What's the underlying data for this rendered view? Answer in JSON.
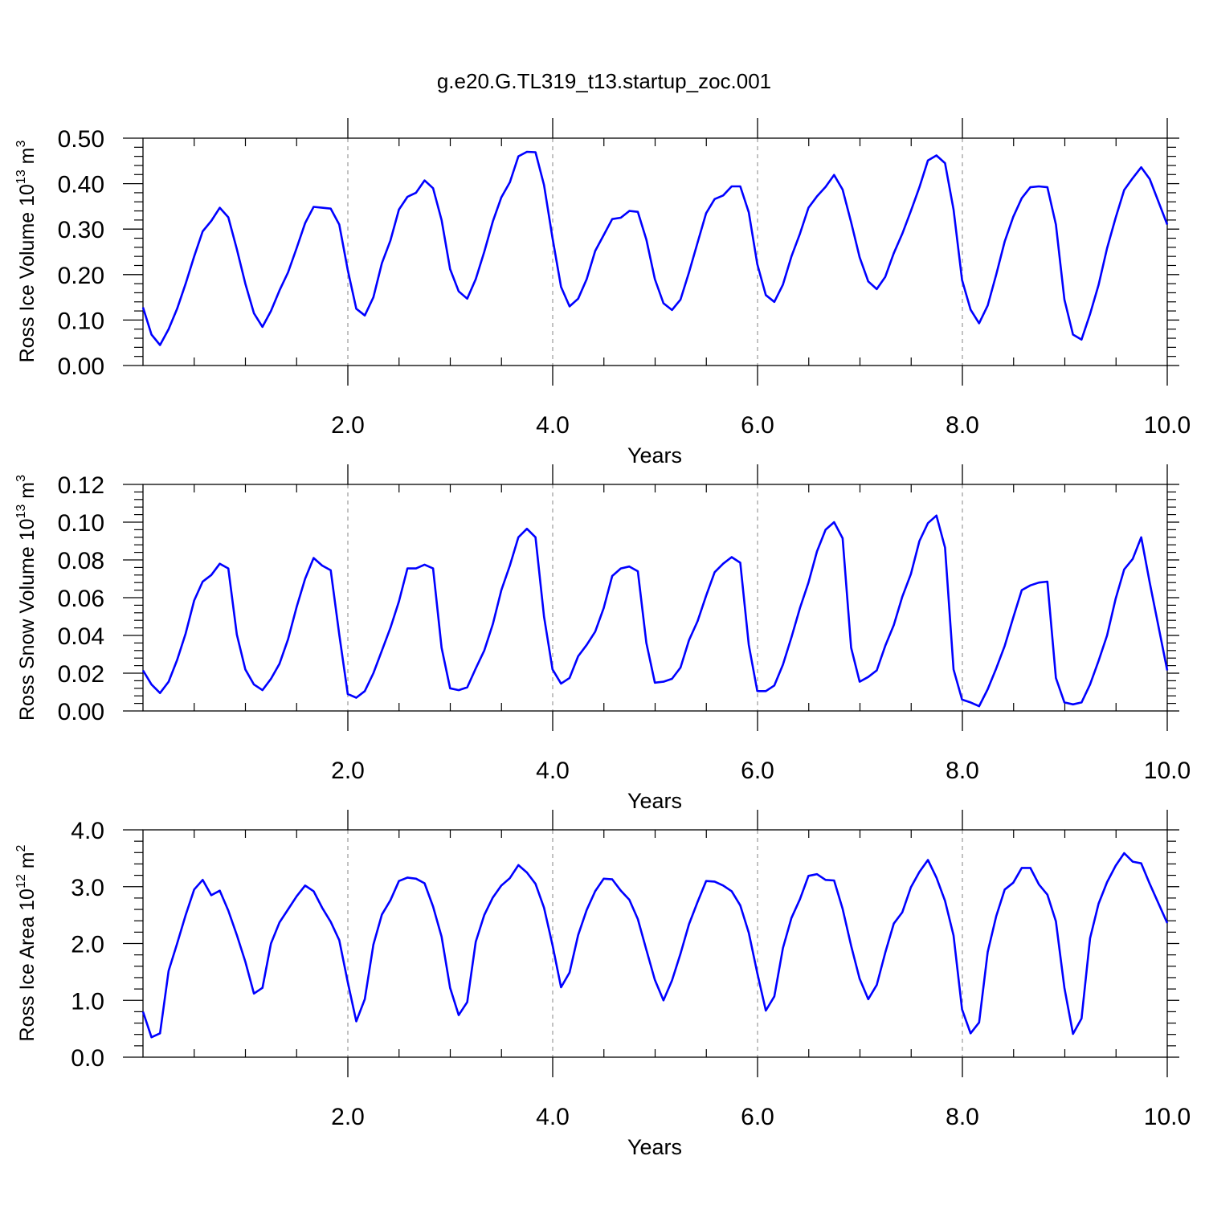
{
  "figure": {
    "title": "g.e20.G.TL319_t13.startup_zoc.001"
  },
  "chart_data": [
    {
      "type": "line",
      "xlabel": "Years",
      "ylabel": {
        "prefix": "Ross Ice Volume 10",
        "exp": "13",
        "unit": " m",
        "unit_exp": "3"
      },
      "xlim": [
        0.0,
        10.0
      ],
      "ylim": [
        0.0,
        0.5
      ],
      "x_ticks": [
        2,
        4,
        6,
        8,
        10
      ],
      "x_tick_labels": [
        "2.0",
        "4.0",
        "6.0",
        "8.0",
        "10.0"
      ],
      "y_ticks": [
        0,
        0.1,
        0.2,
        0.3,
        0.4,
        0.5
      ],
      "y_tick_labels": [
        "0.00",
        "0.10",
        "0.20",
        "0.30",
        "0.40",
        "0.50"
      ],
      "grid": "vertical dashed at major x ticks",
      "color": "#0000ff",
      "x_start": 0.0,
      "x_step": 0.0833,
      "values": [
        0.128,
        0.068,
        0.045,
        0.08,
        0.125,
        0.18,
        0.24,
        0.295,
        0.318,
        0.347,
        0.326,
        0.256,
        0.18,
        0.115,
        0.085,
        0.12,
        0.165,
        0.205,
        0.258,
        0.313,
        0.349,
        0.347,
        0.345,
        0.31,
        0.21,
        0.125,
        0.11,
        0.15,
        0.225,
        0.275,
        0.343,
        0.371,
        0.38,
        0.407,
        0.39,
        0.32,
        0.212,
        0.163,
        0.147,
        0.19,
        0.25,
        0.317,
        0.37,
        0.403,
        0.46,
        0.47,
        0.469,
        0.397,
        0.28,
        0.173,
        0.13,
        0.147,
        0.19,
        0.252,
        0.287,
        0.322,
        0.325,
        0.34,
        0.338,
        0.277,
        0.19,
        0.137,
        0.122,
        0.145,
        0.205,
        0.27,
        0.335,
        0.366,
        0.374,
        0.394,
        0.394,
        0.337,
        0.223,
        0.155,
        0.14,
        0.178,
        0.24,
        0.29,
        0.347,
        0.372,
        0.393,
        0.419,
        0.387,
        0.315,
        0.238,
        0.185,
        0.168,
        0.195,
        0.247,
        0.29,
        0.34,
        0.392,
        0.451,
        0.462,
        0.445,
        0.343,
        0.188,
        0.123,
        0.093,
        0.132,
        0.2,
        0.273,
        0.327,
        0.368,
        0.392,
        0.394,
        0.392,
        0.31,
        0.145,
        0.068,
        0.057,
        0.113,
        0.177,
        0.258,
        0.325,
        0.386,
        0.412,
        0.436,
        0.41,
        0.31
      ]
    },
    {
      "type": "line",
      "xlabel": "Years",
      "ylabel": {
        "prefix": "Ross Snow Volume 10",
        "exp": "13",
        "unit": " m",
        "unit_exp": "3"
      },
      "xlim": [
        0.0,
        10.0
      ],
      "ylim": [
        0.0,
        0.12
      ],
      "x_ticks": [
        2,
        4,
        6,
        8,
        10
      ],
      "x_tick_labels": [
        "2.0",
        "4.0",
        "6.0",
        "8.0",
        "10.0"
      ],
      "y_ticks": [
        0,
        0.02,
        0.04,
        0.06,
        0.08,
        0.1,
        0.12
      ],
      "y_tick_labels": [
        "0.00",
        "0.02",
        "0.04",
        "0.06",
        "0.08",
        "0.10",
        "0.12"
      ],
      "grid": "vertical dashed at major x ticks",
      "color": "#0000ff",
      "x_start": 0.0,
      "x_step": 0.0833,
      "values": [
        0.0215,
        0.014,
        0.0095,
        0.0155,
        0.027,
        0.041,
        0.0585,
        0.0685,
        0.072,
        0.078,
        0.0755,
        0.0405,
        0.022,
        0.014,
        0.011,
        0.017,
        0.025,
        0.038,
        0.055,
        0.07,
        0.081,
        0.077,
        0.0745,
        0.0405,
        0.009,
        0.007,
        0.0105,
        0.02,
        0.032,
        0.044,
        0.058,
        0.0755,
        0.0755,
        0.0775,
        0.0755,
        0.0335,
        0.012,
        0.011,
        0.0125,
        0.0225,
        0.032,
        0.046,
        0.064,
        0.077,
        0.092,
        0.0965,
        0.092,
        0.05,
        0.022,
        0.0145,
        0.0175,
        0.029,
        0.035,
        0.042,
        0.0545,
        0.0715,
        0.0755,
        0.0765,
        0.074,
        0.036,
        0.015,
        0.0155,
        0.017,
        0.023,
        0.0375,
        0.0475,
        0.061,
        0.0735,
        0.078,
        0.0815,
        0.0785,
        0.035,
        0.0105,
        0.0105,
        0.0135,
        0.0245,
        0.039,
        0.0545,
        0.068,
        0.0845,
        0.096,
        0.1,
        0.0915,
        0.0335,
        0.0155,
        0.018,
        0.0215,
        0.0345,
        0.0455,
        0.0605,
        0.0725,
        0.09,
        0.0995,
        0.1035,
        0.0865,
        0.022,
        0.006,
        0.0045,
        0.0025,
        0.0115,
        0.0225,
        0.0345,
        0.0495,
        0.064,
        0.0665,
        0.068,
        0.0685,
        0.0175,
        0.0045,
        0.0035,
        0.0045,
        0.014,
        0.0265,
        0.04,
        0.0595,
        0.075,
        0.0805,
        0.092,
        0.068,
        0.0215
      ]
    },
    {
      "type": "line",
      "xlabel": "Years",
      "ylabel": {
        "prefix": "Ross Ice Area 10",
        "exp": "12",
        "unit": " m",
        "unit_exp": "2"
      },
      "xlim": [
        0.0,
        10.0
      ],
      "ylim": [
        0.0,
        4.0
      ],
      "x_ticks": [
        2,
        4,
        6,
        8,
        10
      ],
      "x_tick_labels": [
        "2.0",
        "4.0",
        "6.0",
        "8.0",
        "10.0"
      ],
      "y_ticks": [
        0,
        1,
        2,
        3,
        4
      ],
      "y_tick_labels": [
        "0.0",
        "1.0",
        "2.0",
        "3.0",
        "4.0"
      ],
      "grid": "vertical dashed at major x ticks",
      "color": "#0000ff",
      "x_start": 0.0,
      "x_step": 0.0833,
      "values": [
        0.8,
        0.35,
        0.42,
        1.52,
        2.0,
        2.5,
        2.95,
        3.12,
        2.85,
        2.93,
        2.58,
        2.15,
        1.68,
        1.12,
        1.22,
        2.0,
        2.37,
        2.6,
        2.83,
        3.02,
        2.92,
        2.63,
        2.38,
        2.06,
        1.32,
        0.63,
        1.02,
        1.98,
        2.51,
        2.76,
        3.1,
        3.16,
        3.14,
        3.06,
        2.65,
        2.12,
        1.22,
        0.74,
        0.97,
        2.03,
        2.5,
        2.81,
        3.02,
        3.15,
        3.38,
        3.25,
        3.05,
        2.63,
        1.97,
        1.23,
        1.49,
        2.15,
        2.59,
        2.92,
        3.14,
        3.13,
        2.93,
        2.77,
        2.43,
        1.89,
        1.36,
        1.0,
        1.35,
        1.82,
        2.34,
        2.73,
        3.1,
        3.09,
        3.02,
        2.92,
        2.67,
        2.19,
        1.48,
        0.82,
        1.07,
        1.92,
        2.45,
        2.78,
        3.19,
        3.22,
        3.12,
        3.11,
        2.61,
        1.96,
        1.38,
        1.02,
        1.27,
        1.84,
        2.35,
        2.55,
        2.99,
        3.26,
        3.47,
        3.16,
        2.75,
        2.14,
        0.84,
        0.42,
        0.61,
        1.85,
        2.48,
        2.95,
        3.07,
        3.33,
        3.33,
        3.04,
        2.86,
        2.39,
        1.22,
        0.41,
        0.68,
        2.09,
        2.7,
        3.08,
        3.37,
        3.59,
        3.44,
        3.41,
        3.05,
        2.36
      ]
    }
  ]
}
